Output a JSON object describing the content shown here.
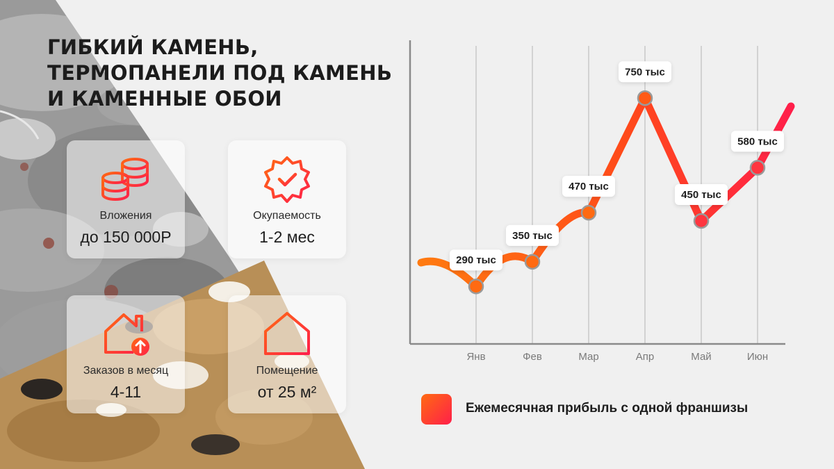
{
  "title_lines": [
    "ГИБКИЙ КАМЕНЬ,",
    "ТЕРМОПАНЕЛИ ПОД КАМЕНЬ",
    "И КАМЕННЫЕ ОБОИ"
  ],
  "cards": [
    {
      "icon": "coins-icon",
      "label": "Вложения",
      "value": "до 150 000Р"
    },
    {
      "icon": "badge-check-icon",
      "label": "Окупаемость",
      "value": "1-2 мес"
    },
    {
      "icon": "house-arrow-up-icon",
      "label": "Заказов в месяц",
      "value": "4-11"
    },
    {
      "icon": "house-icon",
      "label": "Помещение",
      "value": "от 25 м²"
    }
  ],
  "colors": {
    "accent_orange": "#ff6a12",
    "accent_red": "#ff1f4a",
    "grid": "#c8c8c8",
    "axis": "#8a8a8a"
  },
  "chart_data": {
    "type": "line",
    "categories": [
      "Янв",
      "Фев",
      "Мар",
      "Апр",
      "Май",
      "Июн"
    ],
    "series": [
      {
        "name": "Ежемесячная прибыль с одной франшизы",
        "values": [
          290,
          350,
          470,
          750,
          450,
          580
        ]
      }
    ],
    "data_labels": [
      "290 тыс",
      "350 тыс",
      "470 тыс",
      "750 тыс",
      "450 тыс",
      "580 тыс"
    ],
    "legend": "bottom",
    "grid": true
  }
}
